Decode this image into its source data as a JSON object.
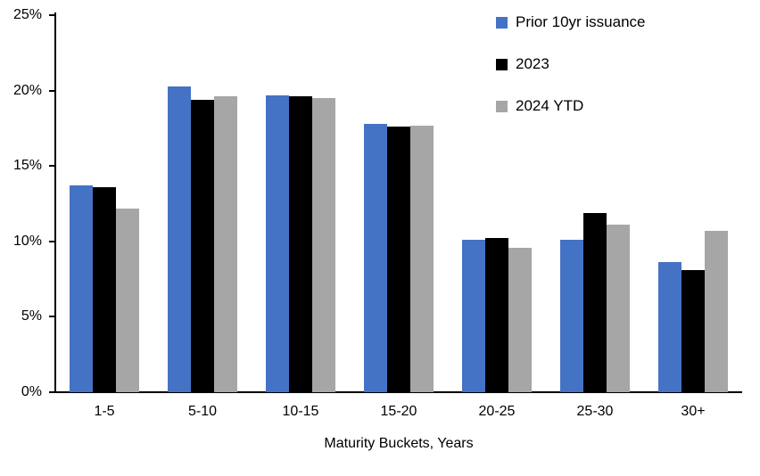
{
  "chart_data": {
    "type": "bar",
    "title": "",
    "categories": [
      "1-5",
      "5-10",
      "10-15",
      "15-20",
      "20-25",
      "25-30",
      "30+"
    ],
    "series": [
      {
        "name": "Prior 10yr issuance",
        "color": "#4472C4",
        "values": [
          13.7,
          20.3,
          19.7,
          17.8,
          10.1,
          10.1,
          8.6
        ]
      },
      {
        "name": "2023",
        "color": "#000000",
        "values": [
          13.6,
          19.4,
          19.6,
          17.6,
          10.2,
          11.9,
          8.1
        ]
      },
      {
        "name": "2024 YTD",
        "color": "#A6A6A6",
        "values": [
          12.2,
          19.6,
          19.5,
          17.7,
          9.6,
          11.1,
          10.7
        ]
      }
    ],
    "xlabel": "Maturity Buckets, Years",
    "ylabel": "",
    "ylim": [
      0,
      25
    ],
    "yticks": [
      0,
      5,
      10,
      15,
      20,
      25
    ],
    "ytick_labels": [
      "0%",
      "5%",
      "10%",
      "15%",
      "20%",
      "25%"
    ],
    "grid": false,
    "legend_position": "top-right",
    "axis_color": "#000000",
    "background_color": "#FFFFFF"
  }
}
